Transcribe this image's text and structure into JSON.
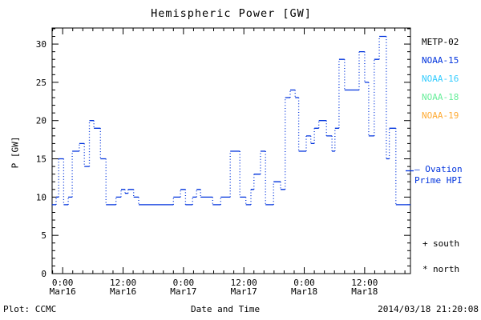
{
  "title": "Hemispheric Power [GW]",
  "footer": {
    "left": "Plot: CCMC",
    "center": "Date and Time",
    "right": "2014/03/18 21:20:08"
  },
  "legend": {
    "satellites": [
      {
        "label": "METP-02",
        "color": "#000000"
      },
      {
        "label": "NOAA-15",
        "color": "#0033dd"
      },
      {
        "label": "NOAA-16",
        "color": "#33ccff"
      },
      {
        "label": "NOAA-18",
        "color": "#66ee99"
      },
      {
        "label": "NOAA-19",
        "color": "#ffaa33"
      }
    ],
    "model": {
      "line1": "— Ovation",
      "line2": "Prime HPI",
      "color": "#0033dd"
    },
    "hemisphere_markers": [
      {
        "symbol": "+",
        "label": "south"
      },
      {
        "symbol": "*",
        "label": "north"
      }
    ]
  },
  "chart_data": {
    "type": "line",
    "subtype": "step",
    "title": "Hemispheric Power [GW]",
    "xlabel": "Date and Time",
    "ylabel": "P [GW]",
    "x_unit": "hours since 2014-03-16 00:00",
    "xlim": [
      -2.1,
      69.1
    ],
    "ylim": [
      0,
      32.1
    ],
    "grid": false,
    "x_major_ticks": [
      {
        "hour": 0,
        "time": "0:00",
        "date": "Mar16"
      },
      {
        "hour": 12,
        "time": "12:00",
        "date": "Mar16"
      },
      {
        "hour": 24,
        "time": "0:00",
        "date": "Mar17"
      },
      {
        "hour": 36,
        "time": "12:00",
        "date": "Mar17"
      },
      {
        "hour": 48,
        "time": "0:00",
        "date": "Mar18"
      },
      {
        "hour": 60,
        "time": "12:00",
        "date": "Mar18"
      }
    ],
    "x_minor_tick_hours": 2,
    "y_major_ticks": [
      0,
      5,
      10,
      15,
      20,
      25,
      30
    ],
    "y_minor_tick": 1,
    "series": [
      {
        "name": "Ovation Prime HPI",
        "color": "#0033dd",
        "style": "step line, solid horizontals, dotted verticals",
        "points": [
          [
            -2.1,
            9
          ],
          [
            -1.3,
            10
          ],
          [
            -0.8,
            15
          ],
          [
            0.2,
            9
          ],
          [
            1.1,
            10
          ],
          [
            1.9,
            16
          ],
          [
            3.3,
            17
          ],
          [
            4.3,
            14
          ],
          [
            5.3,
            20
          ],
          [
            6.2,
            19
          ],
          [
            7.5,
            15
          ],
          [
            8.6,
            9
          ],
          [
            10.6,
            10
          ],
          [
            11.6,
            11
          ],
          [
            12.4,
            10.5
          ],
          [
            13.0,
            11
          ],
          [
            14.1,
            10
          ],
          [
            15.1,
            9
          ],
          [
            22.0,
            10
          ],
          [
            23.4,
            11
          ],
          [
            24.4,
            9
          ],
          [
            25.8,
            10
          ],
          [
            26.6,
            11
          ],
          [
            27.4,
            10
          ],
          [
            29.8,
            9
          ],
          [
            31.4,
            10
          ],
          [
            33.3,
            16
          ],
          [
            35.2,
            10
          ],
          [
            36.4,
            9
          ],
          [
            37.4,
            11
          ],
          [
            38.0,
            13
          ],
          [
            39.3,
            16
          ],
          [
            40.3,
            9
          ],
          [
            41.9,
            12
          ],
          [
            43.3,
            11
          ],
          [
            44.2,
            23
          ],
          [
            45.2,
            24
          ],
          [
            46.2,
            23
          ],
          [
            46.9,
            16
          ],
          [
            48.4,
            18
          ],
          [
            49.3,
            17
          ],
          [
            50.0,
            19
          ],
          [
            50.9,
            20
          ],
          [
            52.4,
            18
          ],
          [
            53.5,
            16
          ],
          [
            54.1,
            19
          ],
          [
            54.9,
            28
          ],
          [
            56.0,
            24
          ],
          [
            58.9,
            29
          ],
          [
            60.0,
            25
          ],
          [
            60.8,
            18
          ],
          [
            61.9,
            28
          ],
          [
            62.9,
            31
          ],
          [
            64.3,
            15
          ],
          [
            64.9,
            19
          ],
          [
            66.2,
            9
          ],
          [
            69.1,
            9
          ]
        ]
      }
    ]
  }
}
